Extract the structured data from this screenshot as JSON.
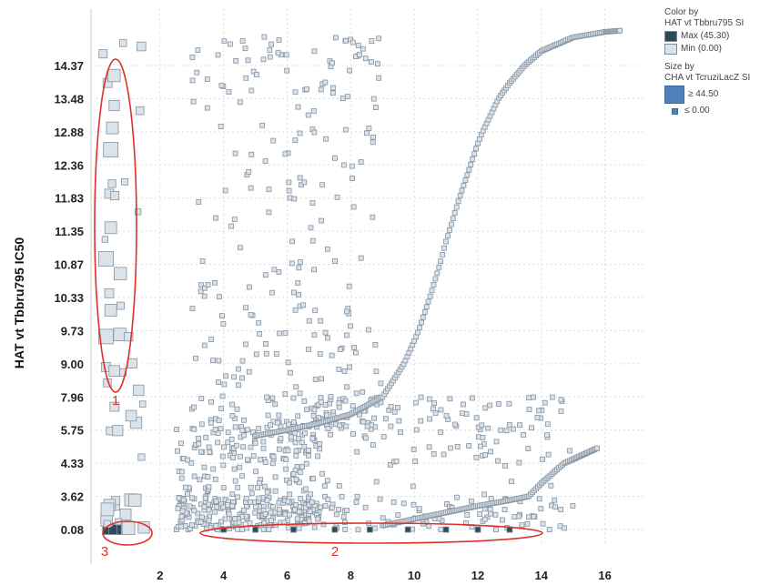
{
  "chart_data": {
    "type": "scatter",
    "ylabel": "HAT vt Tbbru795 IC50",
    "xlabel": "",
    "x_ticks": [
      "2",
      "4",
      "6",
      "8",
      "10",
      "12",
      "14",
      "16"
    ],
    "y_ticks": [
      "0.08",
      "3.62",
      "4.33",
      "5.75",
      "7.96",
      "9.00",
      "9.73",
      "10.33",
      "10.87",
      "11.35",
      "11.83",
      "12.36",
      "12.88",
      "13.48",
      "14.37"
    ],
    "xlim": [
      0,
      17.3
    ],
    "grid": true,
    "legend_position": "top-right",
    "legend": {
      "color_title": "Color by\nHAT vt Tbbru795 SI",
      "color_max": "Max (45.30)",
      "color_min": "Min (0.00)",
      "size_title": "Size by\nCHA vt TcruziLacZ SI",
      "size_max": "≥ 44.50",
      "size_min": "≤ 0.00"
    },
    "color_scale": {
      "min_color": "#dbe3ea",
      "max_color": "#2f4a5a",
      "stroke": "#8593a1"
    },
    "annotations": [
      {
        "label": "1",
        "x_center": 0.4,
        "y_index_center": 8.4,
        "color": "#e0302a"
      },
      {
        "label": "2",
        "x_center": 9.3,
        "y_index_center": 0.0,
        "color": "#e0302a"
      },
      {
        "label": "3",
        "x_center": 0.45,
        "y_index_center": 0.0,
        "color": "#e0302a"
      }
    ],
    "series": [
      {
        "role": "ic50-vs-x curve (upper)",
        "points": [
          [
            5,
            5.5
          ],
          [
            6,
            5.75
          ],
          [
            7,
            6.2
          ],
          [
            8,
            6.8
          ],
          [
            9,
            7.96
          ],
          [
            10,
            9.5
          ],
          [
            11,
            11.2
          ],
          [
            12,
            12.7
          ],
          [
            13,
            13.9
          ],
          [
            14,
            14.9
          ],
          [
            15,
            15.4
          ],
          [
            16,
            15.6
          ],
          [
            16.5,
            15.65
          ]
        ]
      },
      {
        "role": "lower curve",
        "points": [
          [
            9,
            0.5
          ],
          [
            10,
            1.2
          ],
          [
            11,
            1.9
          ],
          [
            12,
            2.6
          ],
          [
            13,
            3.2
          ],
          [
            14,
            3.9
          ],
          [
            15,
            4.5
          ],
          [
            15.8,
            5.0
          ]
        ]
      },
      {
        "role": "high-SI compounds near baseline (group 2)",
        "points": [
          [
            4,
            0.02
          ],
          [
            5,
            0.03
          ],
          [
            6.2,
            0.05
          ],
          [
            7.5,
            0.02
          ],
          [
            8.6,
            0.04
          ],
          [
            9.8,
            0.03
          ],
          [
            11,
            0.05
          ],
          [
            12,
            0.02
          ],
          [
            13,
            0.01
          ]
        ]
      },
      {
        "role": "left column large markers (group 1)",
        "points": [
          [
            0.35,
            13.9
          ],
          [
            0.5,
            12.95
          ],
          [
            0.45,
            12.6
          ],
          [
            0.4,
            11.9
          ],
          [
            0.45,
            11.4
          ],
          [
            0.3,
            10.95
          ],
          [
            0.4,
            10.4
          ],
          [
            0.45,
            10.1
          ],
          [
            0.3,
            9.6
          ],
          [
            0.3,
            8.9
          ]
        ]
      },
      {
        "role": "cluster low-left (group 3)",
        "points": [
          [
            0.35,
            0.06
          ],
          [
            0.55,
            0.08
          ],
          [
            0.8,
            0.07
          ]
        ]
      }
    ]
  }
}
